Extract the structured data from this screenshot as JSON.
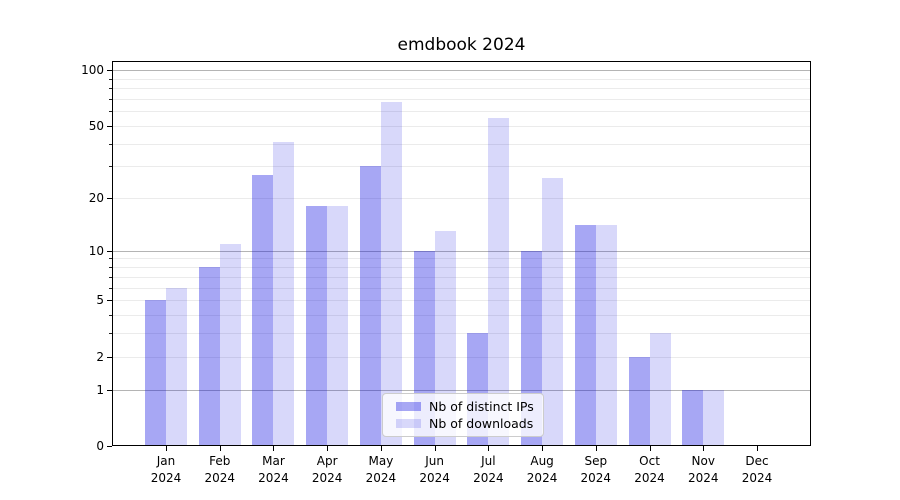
{
  "chart_data": {
    "type": "bar",
    "title": "emdbook 2024",
    "months": [
      "Jan",
      "Feb",
      "Mar",
      "Apr",
      "May",
      "Jun",
      "Jul",
      "Aug",
      "Sep",
      "Oct",
      "Nov",
      "Dec"
    ],
    "year_label": "2024",
    "categories": [
      "Jan 2024",
      "Feb 2024",
      "Mar 2024",
      "Apr 2024",
      "May 2024",
      "Jun 2024",
      "Jul 2024",
      "Aug 2024",
      "Sep 2024",
      "Oct 2024",
      "Nov 2024",
      "Dec 2024"
    ],
    "series": [
      {
        "name": "Nb of distinct IPs",
        "key": "distinct-ips",
        "color_hex": "#a7a7f4",
        "fill": "rgba(10,10,225,0.36)",
        "values": [
          5,
          8,
          27,
          18,
          30,
          10,
          3,
          10,
          14,
          2,
          1,
          0
        ]
      },
      {
        "name": "Nb of downloads",
        "key": "downloads",
        "color_hex": "#d8d8fa",
        "fill": "rgba(10,10,225,0.16)",
        "values": [
          6,
          11,
          41,
          18,
          67,
          13,
          55,
          26,
          14,
          3,
          1,
          0
        ]
      }
    ],
    "yscale": "log1p",
    "ylim": [
      0,
      112
    ],
    "ytick_labels": [
      0,
      1,
      2,
      5,
      10,
      20,
      50,
      100
    ],
    "ytick_minor_values": [
      3,
      4,
      6,
      7,
      8,
      9,
      30,
      40,
      60,
      70,
      80,
      90
    ],
    "grid_major_values": [
      1,
      10,
      100
    ],
    "grid_minor_values": [
      2,
      3,
      4,
      5,
      6,
      7,
      8,
      9,
      20,
      30,
      40,
      50,
      60,
      70,
      80,
      90
    ],
    "grid": true,
    "grid_major_color": "#b4b4b4",
    "grid_minor_color": "#ebebeb",
    "legend_position": "lower center",
    "background_color": "#ffffff"
  }
}
